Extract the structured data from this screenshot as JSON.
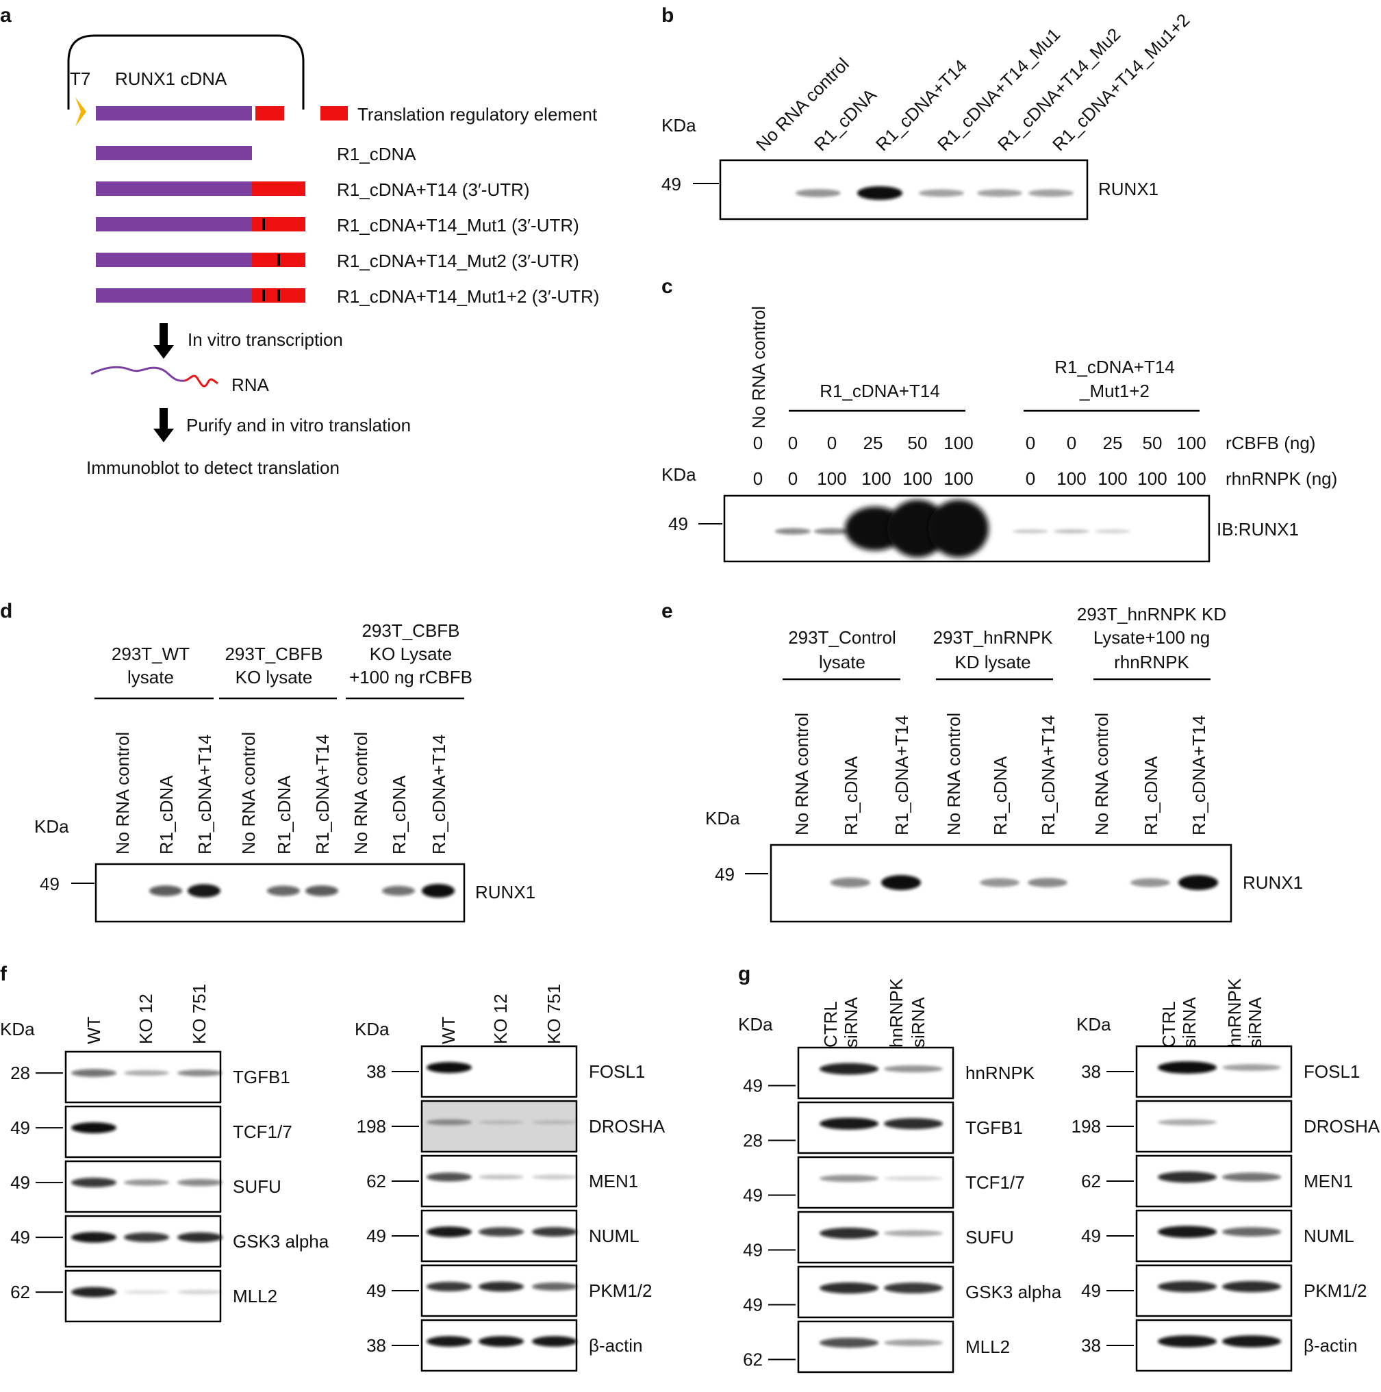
{
  "panels": {
    "a": {
      "letter": "a",
      "t7": "T7",
      "cdna": "RUNX1 cDNA",
      "legend": "Translation regulatory element",
      "constructs": [
        "R1_cDNA",
        "R1_cDNA+T14 (3′-UTR)",
        "R1_cDNA+T14_Mut1 (3′-UTR)",
        "R1_cDNA+T14_Mut2 (3′-UTR)",
        "R1_cDNA+T14_Mut1+2 (3′-UTR)"
      ],
      "step1": "In vitro transcription",
      "rna": "RNA",
      "step2": "Purify and in vitro translation",
      "step3": "Immunoblot to detect translation"
    },
    "b": {
      "letter": "b",
      "lanes": [
        "No RNA control",
        "R1_cDNA",
        "R1_cDNA+T14",
        "R1_cDNA+T14_Mu1",
        "R1_cDNA+T14_Mu2",
        "R1_cDNA+T14_Mu1+2"
      ],
      "kda": "KDa",
      "marker": "49",
      "blot": "RUNX1",
      "intensities": [
        0,
        0.35,
        1,
        0.3,
        0.3,
        0.3
      ]
    },
    "c": {
      "letter": "c",
      "lane0": "No RNA control",
      "group1": "R1_cDNA+T14",
      "group2a": "R1_cDNA+T14",
      "group2b": "_Mut1+2",
      "rcbfb_label": "rCBFB (ng)",
      "rhnrnpk_label": "rhnRNPK (ng)",
      "rcbfb": [
        "0",
        "0",
        "0",
        "25",
        "50",
        "100",
        "0",
        "0",
        "25",
        "50",
        "100"
      ],
      "rhnrnpk": [
        "0",
        "0",
        "100",
        "100",
        "100",
        "100",
        "0",
        "100",
        "100",
        "100",
        "100"
      ],
      "kda": "KDa",
      "marker": "49",
      "blot": "IB:RUNX1",
      "intensities": [
        0,
        0.45,
        0.45,
        1,
        1,
        1,
        0.12,
        0.15,
        0.08,
        0,
        0
      ]
    },
    "d": {
      "letter": "d",
      "group1": [
        "293T_WT",
        "lysate"
      ],
      "group2": [
        "293T_CBFB",
        "KO  lysate"
      ],
      "group3": [
        "293T_CBFB",
        "KO Lysate",
        "+100 ng rCBFB"
      ],
      "lanes": [
        "No RNA control",
        "R1_cDNA",
        "R1_cDNA+T14",
        "No RNA control",
        "R1_cDNA",
        "R1_cDNA+T14",
        "No RNA control",
        "R1_cDNA",
        "R1_cDNA+T14"
      ],
      "kda": "KDa",
      "marker": "49",
      "blot": "RUNX1",
      "intensities": [
        0,
        0.65,
        0.95,
        0,
        0.6,
        0.65,
        0,
        0.55,
        1
      ]
    },
    "e": {
      "letter": "e",
      "group1": [
        "293T_Control",
        "lysate"
      ],
      "group2": [
        "293T_hnRNPK",
        "KD lysate"
      ],
      "group3": [
        "293T_hnRNPK KD",
        "Lysate+100 ng",
        "rhnRNPK"
      ],
      "lanes": [
        "No RNA control",
        "R1_cDNA",
        "R1_cDNA+T14",
        "No RNA control",
        "R1_cDNA",
        "R1_cDNA+T14",
        "No RNA control",
        "R1_cDNA",
        "R1_cDNA+T14"
      ],
      "kda": "KDa",
      "marker": "49",
      "blot": "RUNX1",
      "intensities": [
        0,
        0.45,
        1,
        0,
        0.35,
        0.4,
        0,
        0.35,
        1
      ]
    },
    "f": {
      "letter": "f",
      "kda": "KDa",
      "lanes": [
        "WT",
        "KO 12",
        "KO 751"
      ],
      "left": [
        {
          "label": "TGFB1",
          "marker": "28",
          "bands": [
            0.55,
            0.25,
            0.4
          ]
        },
        {
          "label": "TCF1/7",
          "marker": "49",
          "bands": [
            1,
            0,
            0
          ]
        },
        {
          "label": "SUFU",
          "marker": "49",
          "bands": [
            0.8,
            0.35,
            0.45
          ]
        },
        {
          "label": "GSK3 alpha",
          "marker": "49",
          "bands": [
            0.95,
            0.8,
            0.85
          ]
        },
        {
          "label": "MLL2",
          "marker": "62",
          "bands": [
            0.9,
            0.03,
            0.08
          ]
        }
      ],
      "right": [
        {
          "label": "FOSL1",
          "marker": "38",
          "bands": [
            1,
            0,
            0
          ]
        },
        {
          "label": "DROSHA",
          "marker": "198",
          "bands": [
            0.3,
            0.05,
            0.05
          ]
        },
        {
          "label": "MEN1",
          "marker": "62",
          "bands": [
            0.7,
            0.15,
            0.12
          ]
        },
        {
          "label": "NUML",
          "marker": "49",
          "bands": [
            0.95,
            0.75,
            0.8
          ]
        },
        {
          "label": "PKM1/2",
          "marker": "49",
          "bands": [
            0.8,
            0.85,
            0.6
          ]
        },
        {
          "label": "β-actin",
          "marker": "38",
          "bands": [
            0.95,
            0.95,
            0.95
          ]
        }
      ]
    },
    "g": {
      "letter": "g",
      "kda": "KDa",
      "lanes": [
        [
          "CTRL",
          "siRNA"
        ],
        [
          "hnRNPK",
          "siRNA"
        ]
      ],
      "left": [
        {
          "label": "hnRNPK",
          "marker": "49",
          "bands": [
            0.9,
            0.35
          ]
        },
        {
          "label": "TGFB1",
          "marker": "28",
          "bands": [
            0.95,
            0.85
          ]
        },
        {
          "label": "TCF1/7",
          "marker": "49",
          "bands": [
            0.35,
            0.05
          ]
        },
        {
          "label": "SUFU",
          "marker": "49",
          "bands": [
            0.85,
            0.25
          ]
        },
        {
          "label": "GSK3 alpha",
          "marker": "49",
          "bands": [
            0.85,
            0.8
          ]
        },
        {
          "label": "MLL2",
          "marker": "62",
          "bands": [
            0.7,
            0.3
          ]
        }
      ],
      "right": [
        {
          "label": "FOSL1",
          "marker": "38",
          "bands": [
            1,
            0.3
          ]
        },
        {
          "label": "DROSHA",
          "marker": "198",
          "bands": [
            0.25,
            0
          ]
        },
        {
          "label": "MEN1",
          "marker": "62",
          "bands": [
            0.85,
            0.55
          ]
        },
        {
          "label": "NUML",
          "marker": "49",
          "bands": [
            0.95,
            0.6
          ]
        },
        {
          "label": "PKM1/2",
          "marker": "49",
          "bands": [
            0.85,
            0.85
          ]
        },
        {
          "label": "β-actin",
          "marker": "38",
          "bands": [
            0.95,
            0.95
          ]
        }
      ]
    }
  },
  "colors": {
    "cdna": "#7b3fa0",
    "element": "#ee1111",
    "promoter": "#f5b400",
    "band": "#0d0d0d"
  }
}
